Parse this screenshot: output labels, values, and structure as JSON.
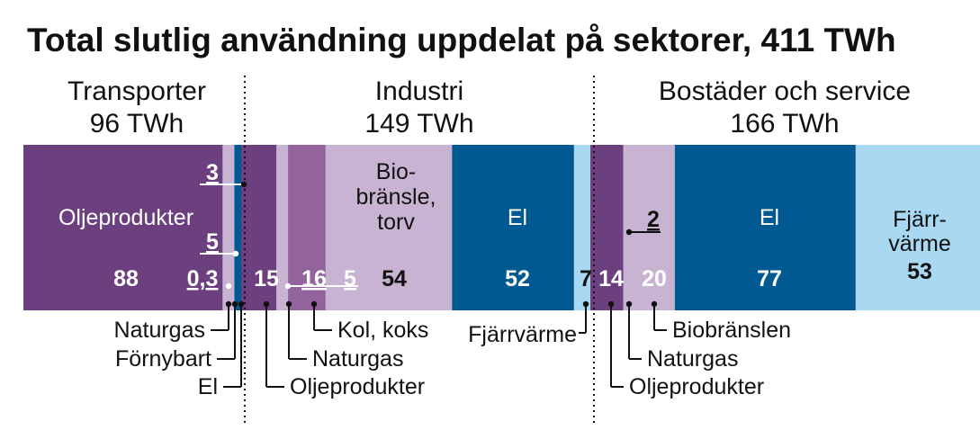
{
  "chart_data": {
    "type": "bar",
    "orientation": "horizontal-stacked",
    "title": "Total slutlig användning uppdelat på sektorer, 411 TWh",
    "unit": "TWh",
    "total": 411,
    "sectors": [
      {
        "name": "Transporter",
        "total_label": "96 TWh",
        "total": 96,
        "segments": [
          {
            "name": "Oljeprodukter",
            "value": 88,
            "value_label": "88",
            "inner_label": "Oljeprodukter",
            "color": "#6c3f7f"
          },
          {
            "name": "Naturgas",
            "value": 0.3,
            "value_label": "0,3",
            "color": "#b79bc4"
          },
          {
            "name": "Förnybart",
            "value": 5,
            "value_label": "5",
            "color": "#c9b3d3"
          },
          {
            "name": "El",
            "value": 3,
            "value_label": "3",
            "color": "#005a91"
          }
        ]
      },
      {
        "name": "Industri",
        "total_label": "149 TWh",
        "total": 149,
        "segments": [
          {
            "name": "Oljeprodukter",
            "value": 15,
            "value_label": "15",
            "color": "#6c3f7f"
          },
          {
            "name": "Naturgas",
            "value": 5,
            "value_label": "5",
            "color": "#c9b3d3"
          },
          {
            "name": "Kol, koks",
            "value": 16,
            "value_label": "16",
            "color": "#93639e"
          },
          {
            "name": "Biobränsle, torv",
            "value": 54,
            "value_label": "54",
            "inner_label": [
              "Bio-",
              "bränsle,",
              "torv"
            ],
            "color": "#c9b3d3"
          },
          {
            "name": "El",
            "value": 52,
            "value_label": "52",
            "inner_label": "El",
            "color": "#005a91"
          },
          {
            "name": "Fjärrvärme",
            "value": 7,
            "value_label": "7",
            "color": "#a9d9f2"
          }
        ]
      },
      {
        "name": "Bostäder och service",
        "total_label": "166 TWh",
        "total": 166,
        "segments": [
          {
            "name": "Oljeprodukter",
            "value": 14,
            "value_label": "14",
            "color": "#6c3f7f"
          },
          {
            "name": "Naturgas",
            "value": 2,
            "value_label": "2",
            "color": "#c9b3d3"
          },
          {
            "name": "Biobränslen",
            "value": 20,
            "value_label": "20",
            "color": "#c9b3d3"
          },
          {
            "name": "El",
            "value": 77,
            "value_label": "77",
            "inner_label": "El",
            "color": "#005a91"
          },
          {
            "name": "Fjärrvärme",
            "value": 53,
            "value_label": "53",
            "inner_label": [
              "Fjärr-",
              "värme"
            ],
            "color": "#a9d9f2"
          }
        ]
      }
    ]
  }
}
